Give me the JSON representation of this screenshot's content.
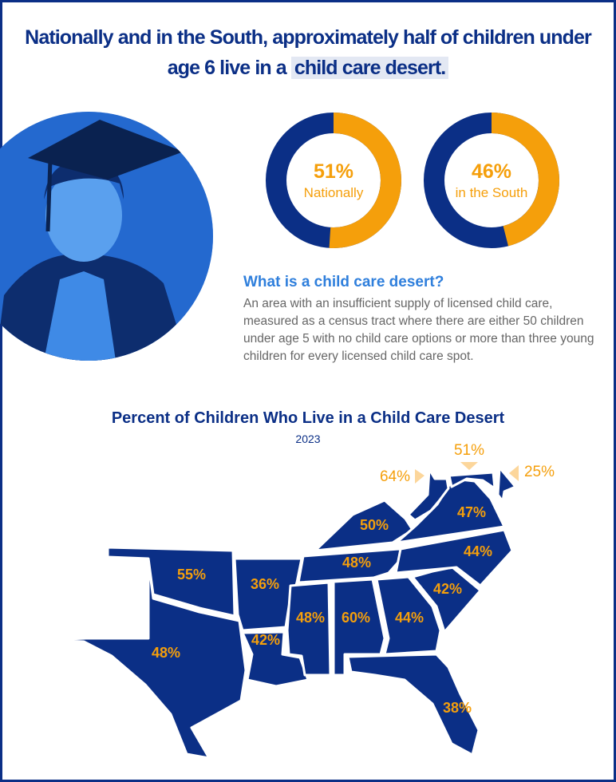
{
  "header": {
    "title_part1": "Nationally and in the South, approximately half of children under age 6 live in a ",
    "title_highlight": "child care desert."
  },
  "colors": {
    "navy": "#0b2f86",
    "orange": "#f59f0b",
    "accent_blue": "#2f7fdc"
  },
  "donuts": [
    {
      "value": 51,
      "label_pct": "51%",
      "label": "Nationally"
    },
    {
      "value": 46,
      "label_pct": "46%",
      "label": "in the South"
    }
  ],
  "definition": {
    "question": "What is a child care desert?",
    "text": "An area with an insufficient supply of licensed child care, measured as a census tract where there are either 50 children under age 5 with no child care options or more than three young children for every licensed child care spot."
  },
  "map": {
    "title": "Percent of Children Who Live in a Child Care Desert",
    "year": "2023",
    "states": {
      "TX": "48%",
      "OK": "55%",
      "AR": "36%",
      "LA": "42%",
      "MS": "48%",
      "AL": "60%",
      "GA": "44%",
      "FL": "38%",
      "SC": "42%",
      "NC": "44%",
      "TN": "48%",
      "KY": "50%",
      "VA": "47%",
      "WV": "64%",
      "MD": "51%",
      "DE": "25%"
    }
  }
}
